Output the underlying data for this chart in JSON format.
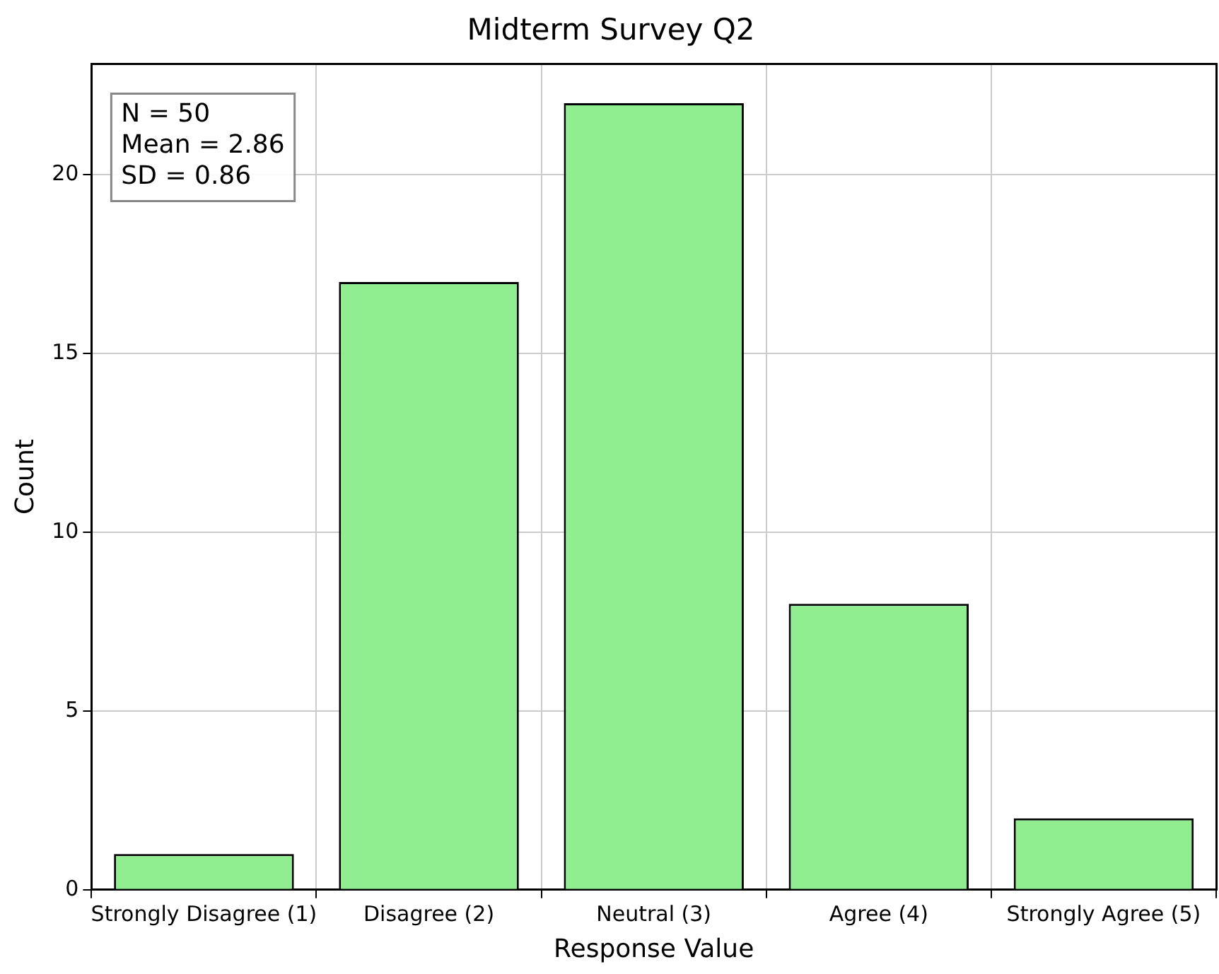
{
  "chart_data": {
    "type": "bar",
    "title": "Midterm Survey Q2",
    "xlabel": "Response Value",
    "ylabel": "Count",
    "categories": [
      "Strongly Disagree (1)",
      "Disagree (2)",
      "Neutral (3)",
      "Agree (4)",
      "Strongly Agree (5)"
    ],
    "values": [
      1,
      17,
      22,
      8,
      2
    ],
    "color": "#90ee90",
    "ylim": [
      0,
      23.1
    ],
    "yticks": [
      0,
      5,
      10,
      15,
      20
    ],
    "grid": true,
    "legend": false,
    "annotations": [
      "N = 50",
      "Mean = 2.86",
      "SD = 0.86"
    ]
  }
}
